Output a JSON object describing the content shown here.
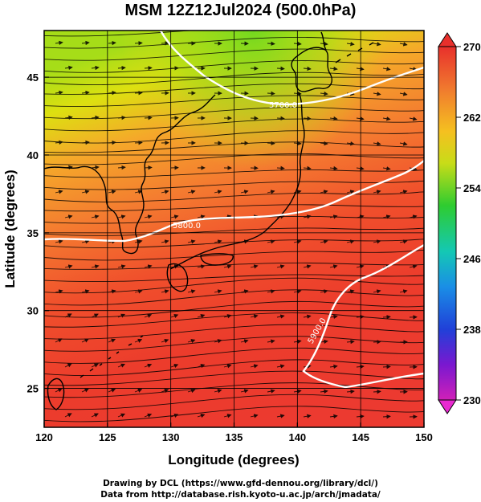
{
  "title": "MSM 12Z12Jul2024 (500.0hPa)",
  "chart_data": {
    "type": "heatmap",
    "xlabel": "Longitude (degrees)",
    "ylabel": "Latitude  (degrees)",
    "xlim": [
      120,
      150
    ],
    "ylim": [
      22.5,
      48
    ],
    "xticks": [
      "120",
      "125",
      "130",
      "135",
      "140",
      "145",
      "150"
    ],
    "yticks": [
      "25",
      "30",
      "35",
      "40",
      "45"
    ],
    "colorbar": {
      "min": 230,
      "max": 270,
      "ticks": [
        "270",
        "262",
        "254",
        "246",
        "238",
        "230"
      ]
    },
    "contour_labels": [
      "5700.0",
      "5800.0",
      "5900.0"
    ],
    "grid": true
  },
  "credits": {
    "line1": "Drawing by DCL (https://www.gfd-dennou.org/library/dcl/)",
    "line2": "Data from http://database.rish.kyoto-u.ac.jp/arch/jmadata/"
  }
}
